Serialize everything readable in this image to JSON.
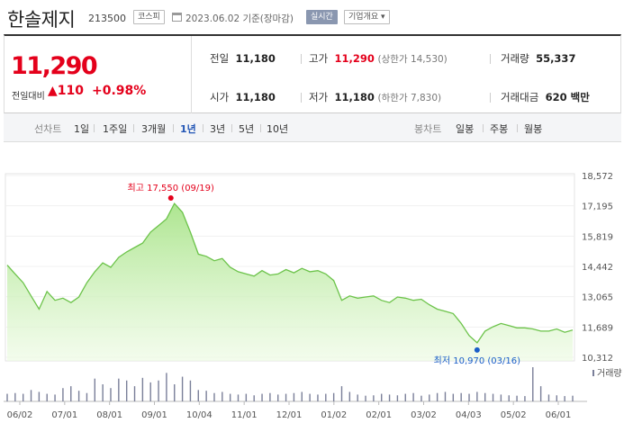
{
  "header": {
    "name": "한솔제지",
    "code": "213500",
    "market": "코스피",
    "date": "2023.06.02 기준(장마감)",
    "live": "실시간",
    "company": "기업개요 ▾"
  },
  "quote": {
    "price": "11,290",
    "prev_label": "전일대비",
    "change": "▲110",
    "change_pct": "+0.98%",
    "prev_close_label": "전일",
    "prev_close": "11,180",
    "high_label": "고가",
    "high": "11,290",
    "upper_limit": "(상한가 14,530)",
    "volume_label": "거래량",
    "volume": "55,337",
    "open_label": "시가",
    "open": "11,180",
    "low_label": "저가",
    "low": "11,180",
    "lower_limit": "(하한가 7,830)",
    "amount_label": "거래대금",
    "amount": "620 백만"
  },
  "tabs": {
    "line_label": "선차트",
    "line_items": [
      "1일",
      "1주일",
      "3개월",
      "1년",
      "3년",
      "5년",
      "10년"
    ],
    "line_active": "1년",
    "candle_label": "봉차트",
    "candle_items": [
      "일봉",
      "주봉",
      "월봉"
    ]
  },
  "colors": {
    "up": "#e4001b",
    "line": "#6cc34a",
    "volume": "#7a7f99",
    "low": "#1a5ec8"
  },
  "chart_data": {
    "type": "area",
    "y_ticks": [
      "18,572",
      "17,195",
      "15,819",
      "14,442",
      "13,065",
      "11,689",
      "10,312"
    ],
    "ylim": [
      10312,
      18572
    ],
    "x_ticks": [
      "06/02",
      "07/01",
      "08/01",
      "09/01",
      "10/04",
      "11/01",
      "12/01",
      "01/02",
      "02/01",
      "03/02",
      "04/03",
      "05/02",
      "06/01"
    ],
    "high_label": "최고 17,550 (09/19)",
    "low_label": "최저 10,970 (03/16)",
    "volume_legend": "거래량",
    "series": [
      14500,
      14100,
      13700,
      13100,
      12500,
      13300,
      12900,
      13000,
      12800,
      13050,
      13700,
      14200,
      14600,
      14400,
      14850,
      15100,
      15300,
      15500,
      16000,
      16300,
      16600,
      17300,
      16900,
      16000,
      15000,
      14900,
      14700,
      14800,
      14400,
      14200,
      14100,
      14000,
      14250,
      14050,
      14100,
      14300,
      14150,
      14350,
      14200,
      14250,
      14100,
      13800,
      12900,
      13100,
      13000,
      13050,
      13100,
      12900,
      12800,
      13050,
      13000,
      12900,
      12950,
      12700,
      12500,
      12400,
      12300,
      11850,
      11300,
      10970,
      11500,
      11700,
      11850,
      11750,
      11650,
      11650,
      11600,
      11500,
      11500,
      11600,
      11450,
      11550
    ],
    "volume": [
      20,
      22,
      20,
      30,
      25,
      20,
      18,
      35,
      40,
      28,
      22,
      60,
      45,
      35,
      60,
      55,
      40,
      62,
      50,
      55,
      75,
      45,
      65,
      55,
      30,
      28,
      22,
      25,
      20,
      18,
      20,
      16,
      20,
      22,
      18,
      20,
      22,
      25,
      20,
      18,
      20,
      22,
      40,
      25,
      18,
      15,
      16,
      20,
      18,
      16,
      20,
      22,
      15,
      18,
      22,
      25,
      20,
      22,
      20,
      25,
      22,
      20,
      18,
      16,
      15,
      14,
      90,
      40,
      18,
      16,
      14,
      15
    ]
  }
}
